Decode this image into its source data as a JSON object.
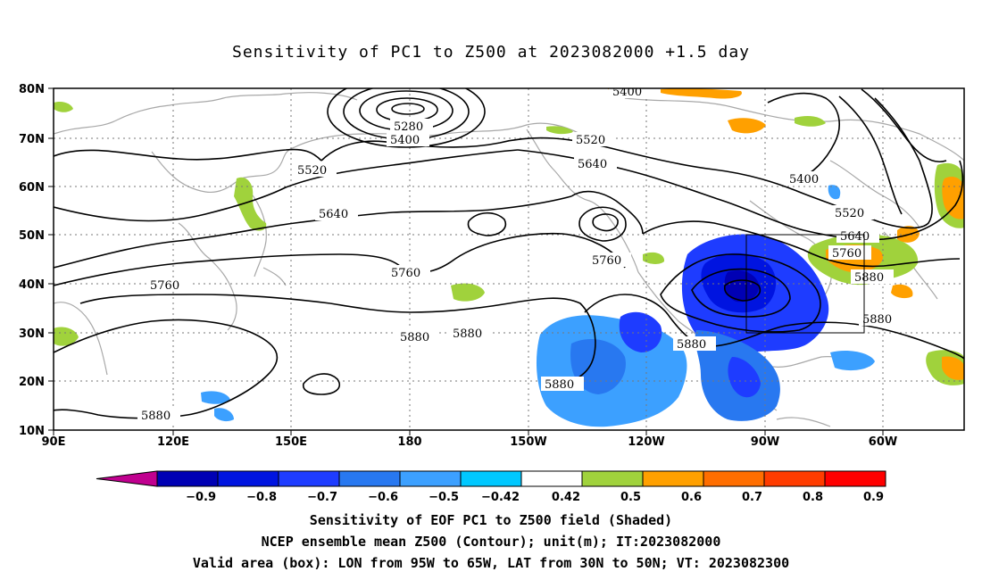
{
  "title": "Sensitivity of PC1 to Z500 at 2023082000 +1.5 day",
  "axes": {
    "lon_labels": [
      "90E",
      "120E",
      "150E",
      "180",
      "150W",
      "120W",
      "90W",
      "60W"
    ],
    "lat_labels": [
      "80N",
      "70N",
      "60N",
      "50N",
      "40N",
      "30N",
      "20N",
      "10N"
    ]
  },
  "contours": [
    {
      "id": "c1",
      "text": "5400"
    },
    {
      "id": "c2",
      "text": "5280"
    },
    {
      "id": "c3",
      "text": "5400"
    },
    {
      "id": "c4",
      "text": "5520"
    },
    {
      "id": "c5",
      "text": "5520"
    },
    {
      "id": "c6",
      "text": "5640"
    },
    {
      "id": "c7",
      "text": "5640"
    },
    {
      "id": "c8",
      "text": "5400"
    },
    {
      "id": "c9",
      "text": "5520"
    },
    {
      "id": "c10",
      "text": "5640"
    },
    {
      "id": "c11",
      "text": "5760"
    },
    {
      "id": "c12",
      "text": "5760"
    },
    {
      "id": "c13",
      "text": "5760"
    },
    {
      "id": "c14",
      "text": "5760"
    },
    {
      "id": "c15",
      "text": "5880"
    },
    {
      "id": "c16",
      "text": "5880"
    },
    {
      "id": "c17",
      "text": "5880"
    },
    {
      "id": "c18",
      "text": "5880"
    },
    {
      "id": "c19",
      "text": "5880"
    },
    {
      "id": "c20",
      "text": "5880"
    },
    {
      "id": "c21",
      "text": "5880"
    }
  ],
  "colorbar": {
    "labels": [
      "−0.9",
      "−0.8",
      "−0.7",
      "−0.6",
      "−0.5",
      "−0.42",
      "0.42",
      "0.5",
      "0.6",
      "0.7",
      "0.8",
      "0.9"
    ],
    "colors": [
      "#c0008f",
      "#0000b4",
      "#0014e0",
      "#1e3cff",
      "#2878f0",
      "#3ca0ff",
      "#00c8ff",
      "#ffffff",
      "#a0d23c",
      "#ffa000",
      "#ff6e00",
      "#ff3c00",
      "#ff0000",
      "#f0a0c8"
    ]
  },
  "footer": {
    "line1": "Sensitivity of EOF PC1 to Z500 field (Shaded)",
    "line2": "NCEP ensemble mean Z500 (Contour); unit(m); IT:2023082000",
    "line3": "Valid area (box): LON from 95W to 65W, LAT from 30N to 50N; VT: 2023082300"
  }
}
